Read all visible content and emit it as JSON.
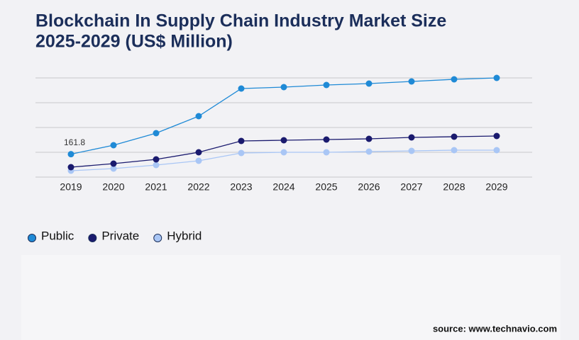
{
  "title_lines": [
    "Blockchain In Supply Chain Industry Market Size",
    "2025-2029 (US$ Million)"
  ],
  "source": "source: www.technavio.com",
  "chart_data": {
    "type": "line",
    "categories": [
      "2019",
      "2020",
      "2021",
      "2022",
      "2023",
      "2024",
      "2025",
      "2026",
      "2027",
      "2028",
      "2029"
    ],
    "series": [
      {
        "name": "Public",
        "color": "#1f8ad6",
        "values": [
          161.8,
          225,
          310,
          430,
          625,
          635,
          650,
          660,
          675,
          690,
          700
        ]
      },
      {
        "name": "Private",
        "color": "#1a1a6e",
        "values": [
          70,
          95,
          125,
          175,
          255,
          260,
          265,
          270,
          280,
          285,
          290
        ]
      },
      {
        "name": "Hybrid",
        "color": "#a9c6f5",
        "values": [
          45,
          60,
          85,
          115,
          170,
          175,
          175,
          180,
          185,
          190,
          190
        ]
      }
    ],
    "ylim": [
      0,
      700
    ],
    "yticks": [
      0,
      175,
      350,
      525,
      700
    ],
    "grid": true
  }
}
